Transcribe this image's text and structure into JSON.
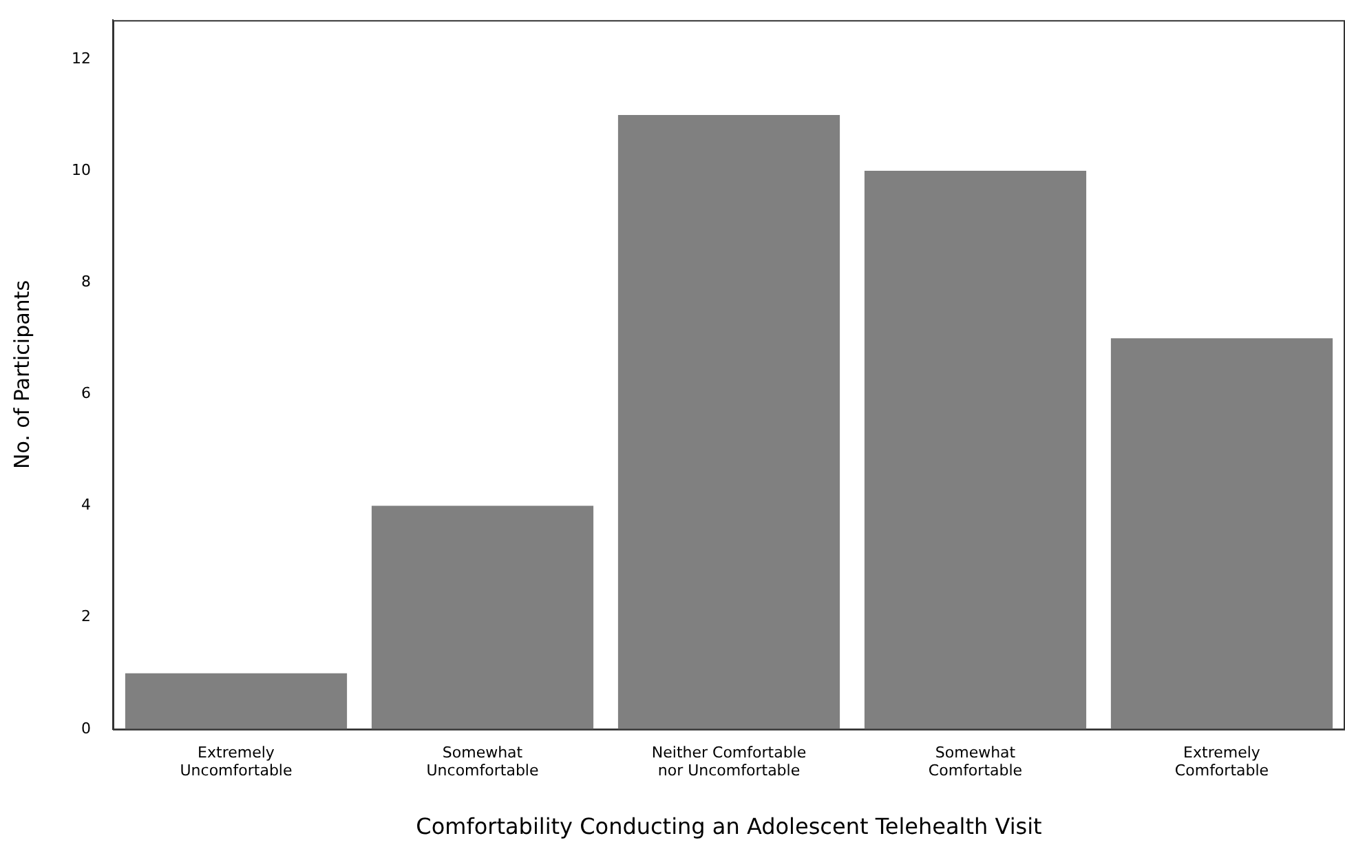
{
  "chart_data": {
    "type": "bar",
    "xlabel": "Comfortability Conducting an Adolescent Telehealth Visit",
    "ylabel": "No. of Participants",
    "categories": [
      "Extremely Uncomfortable",
      "Somewhat Uncomfortable",
      "Neither Comfortable nor Uncomfortable",
      "Somewhat Comfortable",
      "Extremely Comfortable"
    ],
    "values": [
      1,
      4,
      11,
      10,
      7
    ],
    "color": "#808080",
    "ylim": [
      0,
      12.7
    ],
    "yticks": [
      0,
      2,
      4,
      6,
      8,
      10,
      12
    ],
    "grid": false,
    "legend": false
  }
}
